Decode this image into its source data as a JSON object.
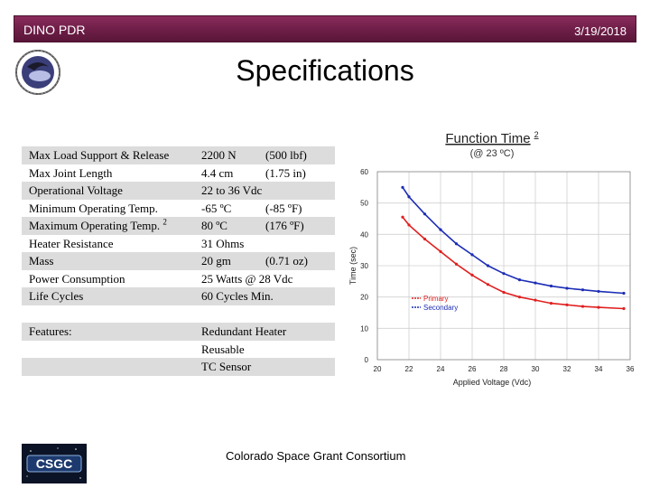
{
  "header": {
    "left": "DINO PDR",
    "date": "3/19/2018"
  },
  "slide": {
    "title": "Specifications"
  },
  "specs": [
    {
      "label": "Max Load Support & Release",
      "value": "2200 N",
      "alt": "(500 lbf)",
      "shaded": true
    },
    {
      "label": "Max Joint Length",
      "value": "4.4 cm",
      "alt": "(1.75 in)",
      "shaded": false
    },
    {
      "label": "Operational Voltage",
      "value": "22 to 36 Vdc",
      "alt": "",
      "shaded": true
    },
    {
      "label": "Minimum Operating Temp.",
      "value": "-65 ºC",
      "alt": "(-85 ºF)",
      "shaded": false
    },
    {
      "label": "Maximum Operating Temp.",
      "label_sup": "2",
      "value": "80 ºC",
      "alt": "(176 ºF)",
      "shaded": true
    },
    {
      "label": "Heater Resistance",
      "value": "31 Ohms",
      "alt": "",
      "shaded": false
    },
    {
      "label": "Mass",
      "value": "20 gm",
      "alt": "(0.71 oz)",
      "shaded": true
    },
    {
      "label": "Power Consumption",
      "value": "25 Watts @ 28 Vdc",
      "alt": "",
      "shaded": false
    },
    {
      "label": "Life Cycles",
      "value": "60 Cycles Min.",
      "alt": "",
      "shaded": true
    },
    {
      "gap": true
    },
    {
      "label": "Features:",
      "value": "Redundant Heater",
      "alt": "",
      "shaded": true
    },
    {
      "label": "",
      "value": "Reusable",
      "alt": "",
      "shaded": false
    },
    {
      "label": "",
      "value": "TC Sensor",
      "alt": "",
      "shaded": true
    }
  ],
  "chart_data": {
    "type": "line",
    "title": "Function Time",
    "title_sup": "2",
    "subtitle": "(@ 23 ºC)",
    "xlabel": "Applied Voltage (Vdc)",
    "ylabel": "Time (sec)",
    "xlim": [
      20,
      36
    ],
    "ylim": [
      0,
      60
    ],
    "x_ticks": [
      "20",
      "22",
      "24",
      "26",
      "28",
      "30",
      "32",
      "34",
      "36"
    ],
    "y_ticks": [
      "0",
      "10",
      "20",
      "30",
      "40",
      "50",
      "60"
    ],
    "legend_position": "center",
    "series": [
      {
        "name": "Primary",
        "color": "#e02020",
        "x": [
          21.6,
          22,
          23,
          24,
          25,
          26,
          27,
          28,
          29,
          30,
          31,
          32,
          33,
          34,
          35.6
        ],
        "y": [
          45.5,
          43,
          38.5,
          34.5,
          30.5,
          27,
          24,
          21.5,
          20,
          19,
          18,
          17.5,
          17,
          16.7,
          16.3
        ]
      },
      {
        "name": "Secondary",
        "color": "#1c2db5",
        "x": [
          21.6,
          22,
          23,
          24,
          25,
          26,
          27,
          28,
          29,
          30,
          31,
          32,
          33,
          34,
          35.6
        ],
        "y": [
          55,
          52,
          46.5,
          41.5,
          37,
          33.5,
          30,
          27.5,
          25.5,
          24.5,
          23.5,
          22.8,
          22.3,
          21.8,
          21.2
        ]
      }
    ]
  },
  "footer": {
    "logo_text": "CSGC",
    "text": "Colorado Space Grant Consortium"
  },
  "colors": {
    "header": "#6f1f49",
    "table_shade": "#dcdcdc"
  }
}
